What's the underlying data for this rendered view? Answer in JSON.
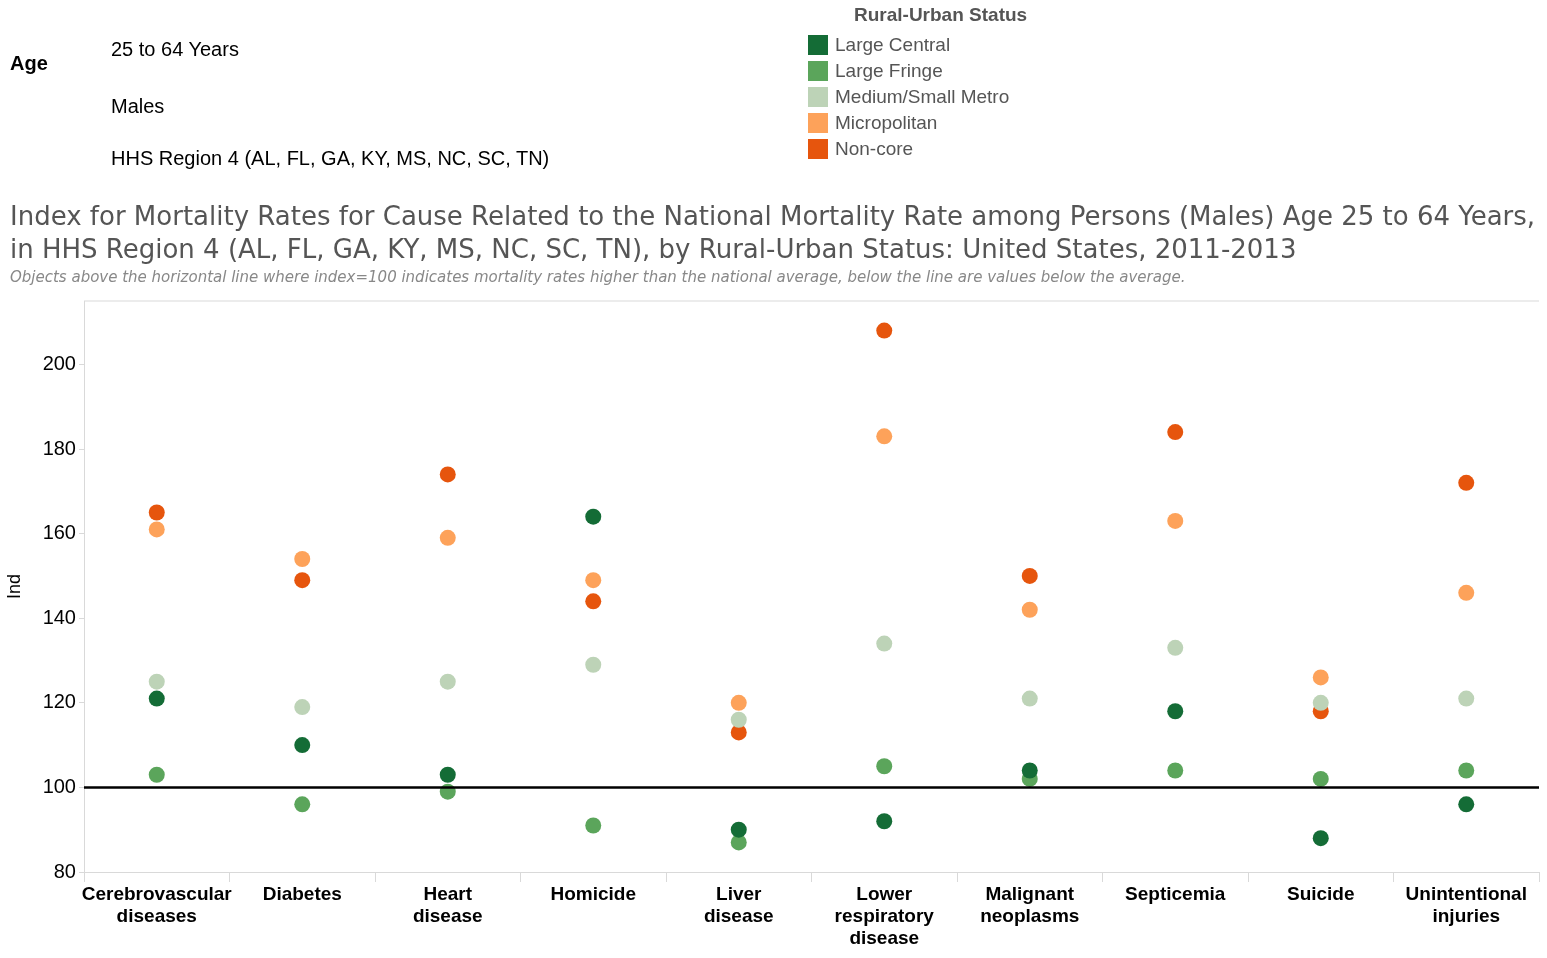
{
  "chart_data": {
    "type": "scatter",
    "title": "Index for Mortality Rates for Cause Related to the National Mortality Rate among Persons (Males) Age 25 to 64 Years, in HHS Region 4  (AL, FL, GA, KY, MS, NC, SC, TN), by Rural-Urban Status: United States, 2011-2013",
    "subtitle": "Objects above the horizontal line where index=100 indicates mortality rates higher than the national average, below the line are values below the average.",
    "annotations": [
      "Age",
      "25 to 64 Years",
      "Males",
      "HHS Region 4  (AL, FL, GA, KY, MS, NC, SC, TN)"
    ],
    "ylabel": "Ind",
    "legend_title": "Rural-Urban Status",
    "legend": "top",
    "grid": false,
    "marker": "circle",
    "categories": [
      "Cerebrovascular diseases",
      "Diabetes",
      "Heart disease",
      "Homicide",
      "Liver disease",
      "Lower respiratory disease",
      "Malignant neoplasms",
      "Septicemia",
      "Suicide",
      "Unintentional injuries"
    ],
    "series": [
      {
        "name": "Large Central",
        "color": "#146c36",
        "values": [
          121,
          110,
          103,
          164,
          90,
          92,
          104,
          118,
          88,
          96
        ]
      },
      {
        "name": "Large Fringe",
        "color": "#5ba55b",
        "values": [
          103,
          96,
          99,
          91,
          87,
          105,
          102,
          104,
          102,
          104
        ]
      },
      {
        "name": "Medium/Small Metro",
        "color": "#bdd3b7",
        "values": [
          125,
          119,
          125,
          129,
          116,
          134,
          121,
          133,
          120,
          121
        ]
      },
      {
        "name": "Micropolitan",
        "color": "#fda25a",
        "values": [
          161,
          154,
          159,
          149,
          120,
          183,
          142,
          163,
          126,
          146
        ]
      },
      {
        "name": "Non-core",
        "color": "#e6550d",
        "values": [
          165,
          149,
          174,
          144,
          113,
          208,
          150,
          184,
          118,
          172
        ]
      }
    ],
    "ylim": [
      80,
      215
    ],
    "yticks": [
      80,
      100,
      120,
      140,
      160,
      180,
      200
    ],
    "ref_lines": [
      {
        "axis": "y",
        "value": 100,
        "color": "#000000"
      }
    ]
  }
}
